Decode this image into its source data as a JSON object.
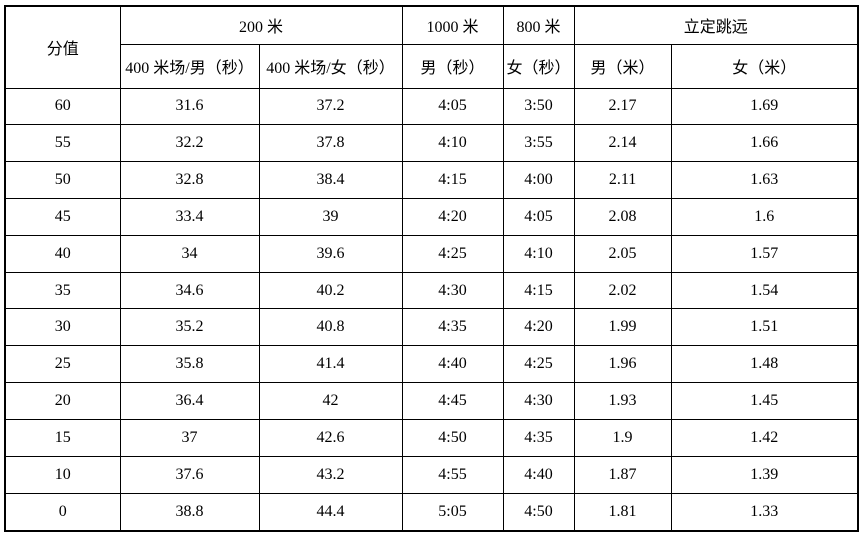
{
  "page": {
    "background_color": "#ffffff",
    "border_color": "#000000",
    "text_color": "#000000"
  },
  "table": {
    "headers": {
      "score": "分值",
      "group_200m": "200 米",
      "group_1000m": "1000 米",
      "group_800m": "800 米",
      "group_long_jump": "立定跳远",
      "sub_200m_male": "400 米场/男（秒）",
      "sub_200m_female": "400 米场/女（秒）",
      "sub_1000m_male": "男（秒）",
      "sub_800m_female": "女（秒）",
      "sub_jump_male": "男（米）",
      "sub_jump_female": "女（米）"
    },
    "rows": [
      [
        "60",
        "31.6",
        "37.2",
        "4:05",
        "3:50",
        "2.17",
        "1.69"
      ],
      [
        "55",
        "32.2",
        "37.8",
        "4:10",
        "3:55",
        "2.14",
        "1.66"
      ],
      [
        "50",
        "32.8",
        "38.4",
        "4:15",
        "4:00",
        "2.11",
        "1.63"
      ],
      [
        "45",
        "33.4",
        "39",
        "4:20",
        "4:05",
        "2.08",
        "1.6"
      ],
      [
        "40",
        "34",
        "39.6",
        "4:25",
        "4:10",
        "2.05",
        "1.57"
      ],
      [
        "35",
        "34.6",
        "40.2",
        "4:30",
        "4:15",
        "2.02",
        "1.54"
      ],
      [
        "30",
        "35.2",
        "40.8",
        "4:35",
        "4:20",
        "1.99",
        "1.51"
      ],
      [
        "25",
        "35.8",
        "41.4",
        "4:40",
        "4:25",
        "1.96",
        "1.48"
      ],
      [
        "20",
        "36.4",
        "42",
        "4:45",
        "4:30",
        "1.93",
        "1.45"
      ],
      [
        "15",
        "37",
        "42.6",
        "4:50",
        "4:35",
        "1.9",
        "1.42"
      ],
      [
        "10",
        "37.6",
        "43.2",
        "4:55",
        "4:40",
        "1.87",
        "1.39"
      ],
      [
        "0",
        "38.8",
        "44.4",
        "5:05",
        "4:50",
        "1.81",
        "1.33"
      ]
    ]
  }
}
